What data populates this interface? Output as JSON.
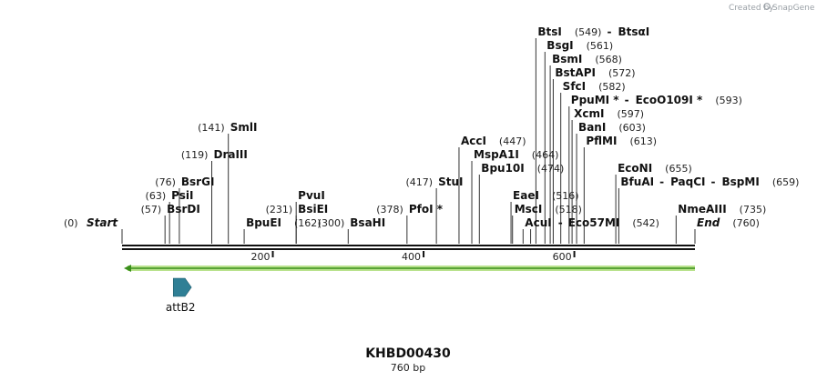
{
  "brand": {
    "prefix": "Created by",
    "name": "SnapGene"
  },
  "sequence": {
    "name": "KHBD00430",
    "length_label": "760 bp",
    "length": 760
  },
  "ruler": {
    "ticks": [
      200,
      400,
      600
    ]
  },
  "features": [
    {
      "name": "attB2",
      "start": 68,
      "end": 92,
      "color": "#2f7f95"
    }
  ],
  "enzymes": [
    {
      "id": "start",
      "label": "Start",
      "pos_label": "(0)",
      "pos": 0,
      "italic": true,
      "label_first": true,
      "row": 0
    },
    {
      "id": "bsrdi",
      "label": "BsrDI",
      "pos_label": "(57)",
      "pos": 57,
      "row": 1
    },
    {
      "id": "psii",
      "label": "PsiI",
      "pos_label": "(63)",
      "pos": 63,
      "row": 2
    },
    {
      "id": "bsrgi",
      "label": "BsrGI",
      "pos_label": "(76)",
      "pos": 76,
      "row": 3
    },
    {
      "id": "draiii",
      "label": "DraIII",
      "pos_label": "(119)",
      "pos": 119,
      "row": 5
    },
    {
      "id": "smli",
      "label": "SmlI",
      "pos_label": "(141)",
      "pos": 141,
      "row": 7
    },
    {
      "id": "bpuei",
      "label": "BpuEI",
      "pos_label": "(162)",
      "pos": 162,
      "row": 0
    },
    {
      "id": "bsiei",
      "label": "BsiEI",
      "pos_label": "(231)",
      "pos": 231,
      "row": 1
    },
    {
      "id": "pvui",
      "label": "PvuI",
      "pos_label": "(231)",
      "pos": 231,
      "row": 2,
      "hide_pos": true
    },
    {
      "id": "bsahi",
      "label": "BsaHI",
      "pos_label": "(300)",
      "pos": 300,
      "row": 0
    },
    {
      "id": "pfoi",
      "label": "PfoI *",
      "pos_label": "(378)",
      "pos": 378,
      "row": 1
    },
    {
      "id": "stui",
      "label": "StuI",
      "pos_label": "(417)",
      "pos": 417,
      "row": 3
    },
    {
      "id": "acci",
      "label": "AccI",
      "pos_label": "(447)",
      "pos": 447,
      "row": 6
    },
    {
      "id": "mspa1i",
      "label": "MspA1I",
      "pos_label": "(464)",
      "pos": 464,
      "row": 5
    },
    {
      "id": "bpu10i",
      "label": "Bpu10I",
      "pos_label": "(474)",
      "pos": 474,
      "row": 4
    },
    {
      "id": "eaei",
      "label": "EaeI",
      "pos_label": "(516)",
      "pos": 516,
      "row": 2
    },
    {
      "id": "msci",
      "label": "MscI",
      "pos_label": "(518)",
      "pos": 518,
      "row": 1
    },
    {
      "id": "acui",
      "label": "AcuI",
      "pos_label": "",
      "pos": 532,
      "row": 0
    },
    {
      "id": "eco57mi",
      "label": "Eco57MI",
      "pos_label": "(542)",
      "pos": 542,
      "row": 0,
      "connector": true
    },
    {
      "id": "btsi",
      "label": "BtsI",
      "pos_label": "(549)",
      "pos": 549,
      "row": 14
    },
    {
      "id": "btsai",
      "label": "BtsαI",
      "pos_label": "",
      "pos": 549,
      "row": 14,
      "joined": true
    },
    {
      "id": "bsgi",
      "label": "BsgI",
      "pos_label": "(561)",
      "pos": 561,
      "row": 13
    },
    {
      "id": "bsmi",
      "label": "BsmI",
      "pos_label": "(568)",
      "pos": 568,
      "row": 12
    },
    {
      "id": "bstapi",
      "label": "BstAPI",
      "pos_label": "(572)",
      "pos": 572,
      "row": 11
    },
    {
      "id": "sfci",
      "label": "SfcI",
      "pos_label": "(582)",
      "pos": 582,
      "row": 10
    },
    {
      "id": "ppumi",
      "label": "PpuMI *",
      "pos_label": "",
      "pos": 593,
      "row": 9
    },
    {
      "id": "ecoo109i",
      "label": "EcoO109I *",
      "pos_label": "(593)",
      "pos": 593,
      "row": 9,
      "joined": true
    },
    {
      "id": "xcmi",
      "label": "XcmI",
      "pos_label": "(597)",
      "pos": 597,
      "row": 8
    },
    {
      "id": "bani",
      "label": "BanI",
      "pos_label": "(603)",
      "pos": 603,
      "row": 7
    },
    {
      "id": "pflmi",
      "label": "PflMI",
      "pos_label": "(613)",
      "pos": 613,
      "row": 6
    },
    {
      "id": "econi",
      "label": "EcoNI",
      "pos_label": "(655)",
      "pos": 655,
      "row": 4
    },
    {
      "id": "bfuai",
      "label": "BfuAI",
      "pos_label": "",
      "pos": 659,
      "row": 3
    },
    {
      "id": "paqci",
      "label": "PaqCI",
      "pos_label": "",
      "pos": 659,
      "row": 3,
      "joined": true
    },
    {
      "id": "bspmi",
      "label": "BspMI",
      "pos_label": "(659)",
      "pos": 659,
      "row": 3,
      "joined": true
    },
    {
      "id": "nmeaiii",
      "label": "NmeAIII",
      "pos_label": "(735)",
      "pos": 735,
      "row": 1
    },
    {
      "id": "end",
      "label": "End",
      "pos_label": "(760)",
      "pos": 760,
      "italic": true,
      "row": 0
    }
  ]
}
